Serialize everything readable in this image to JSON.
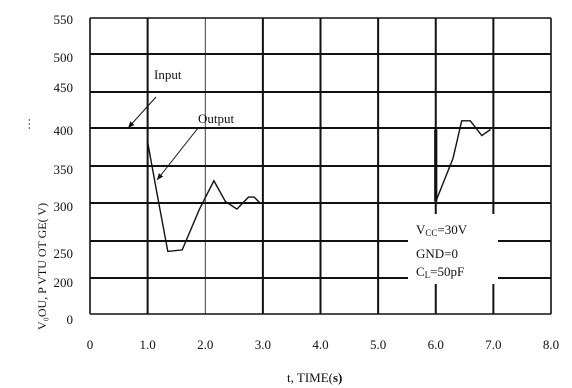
{
  "chart_data": {
    "type": "line",
    "title": "",
    "xlabel": "t, TIME(",
    "xlabel_suffix": "s)",
    "ylabel": "V₀OU, P  VTU OT    GE(   V)",
    "ylabel_fragment": "…",
    "x_ticks": [
      "0",
      "1.0",
      "2.0",
      "3.0",
      "4.0",
      "5.0",
      "6.0",
      "7.0",
      "8.0"
    ],
    "y_ticks": [
      "0",
      "200",
      "250",
      "300",
      "350",
      "400",
      "450",
      "500",
      "550"
    ],
    "grid": true,
    "series": [
      {
        "name": "Input",
        "x": [
          1.0,
          1.0,
          6.0,
          6.0
        ],
        "y": [
          400,
          null,
          398,
          302
        ]
      },
      {
        "name": "Output",
        "x": [
          1.0,
          1.15,
          1.35,
          1.6,
          1.9,
          2.15,
          2.35,
          2.55,
          2.75,
          2.85,
          2.95,
          6.0,
          6.3,
          6.45,
          6.6,
          6.8,
          6.95
        ],
        "y": [
          382,
          318,
          236,
          238,
          292,
          330,
          302,
          292,
          308,
          308,
          300,
          302,
          360,
          410,
          410,
          390,
          398
        ]
      }
    ],
    "annotations": [
      {
        "text": "Input"
      },
      {
        "text": "Output"
      }
    ],
    "legend_box": {
      "vcc_main": "V",
      "vcc_sub": "CC",
      "vcc_rest": "=30V",
      "gnd": "GND=0",
      "cl_main": "C",
      "cl_sub": "L",
      "cl_rest": "=50pF"
    }
  }
}
